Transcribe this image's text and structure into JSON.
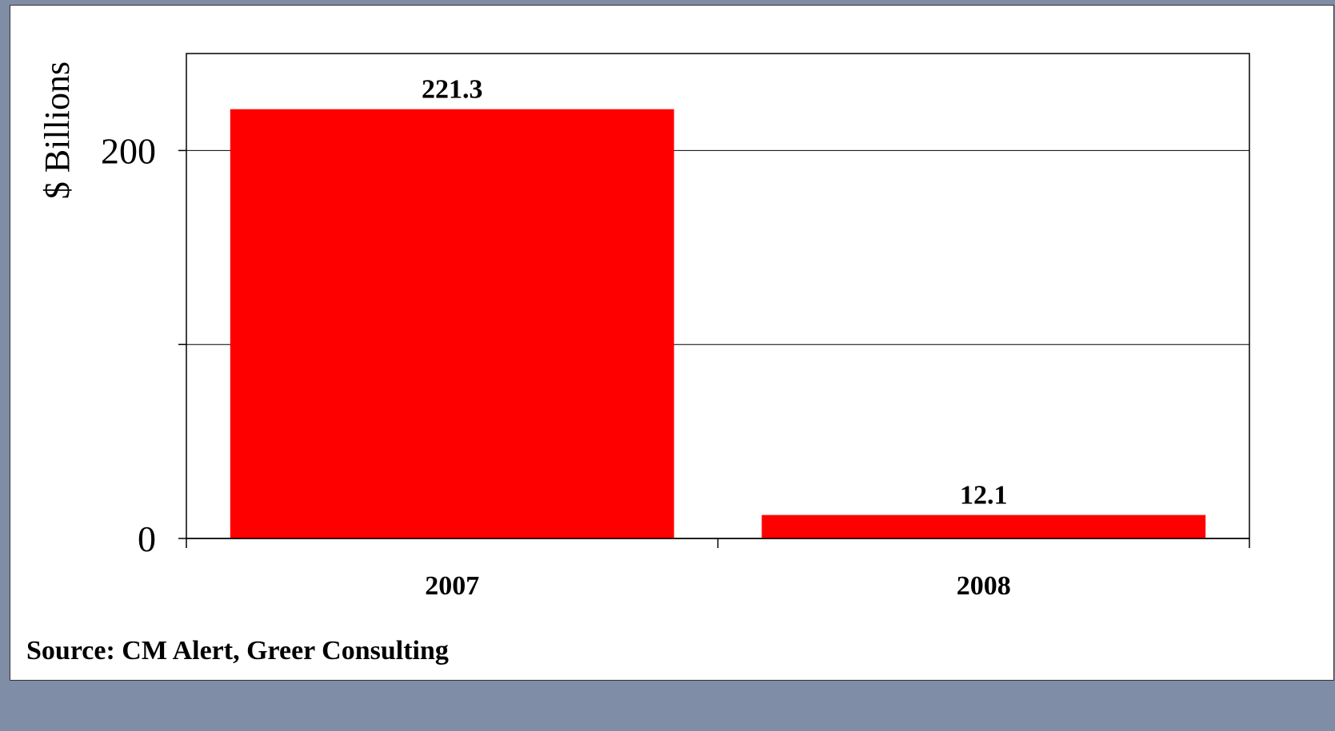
{
  "chart_data": {
    "type": "bar",
    "categories": [
      "2007",
      "2008"
    ],
    "values": [
      221.3,
      12.1
    ],
    "data_labels": [
      "221.3",
      "12.1"
    ],
    "title": "",
    "xlabel": "",
    "ylabel": "$ Billions",
    "ylim": [
      0,
      250
    ],
    "yticks": [
      0,
      100,
      200
    ],
    "ytick_labels": [
      "0",
      "",
      "200"
    ],
    "grid": true,
    "legend": "none",
    "bar_color": "#ff0000"
  },
  "source": "Source: CM Alert, Greer Consulting"
}
